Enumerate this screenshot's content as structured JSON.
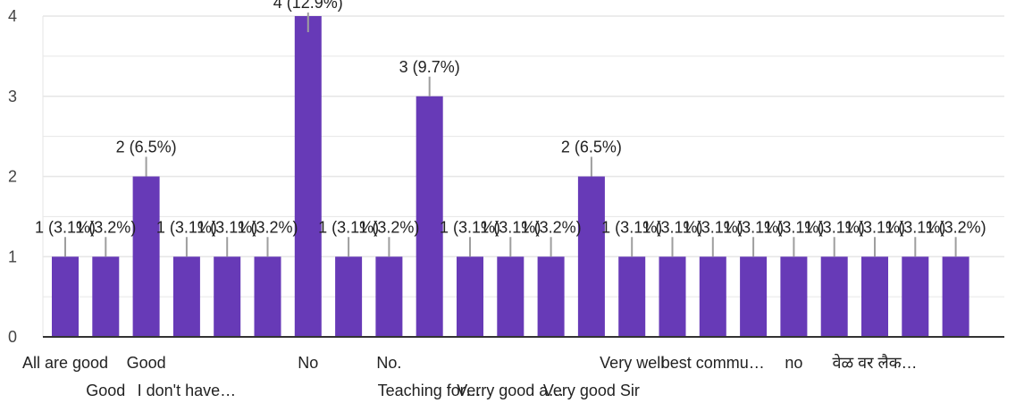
{
  "chart_data": {
    "type": "bar",
    "title": "",
    "xlabel": "",
    "ylabel": "",
    "ylim": [
      0,
      4
    ],
    "yticks": [
      0,
      1,
      2,
      3,
      4
    ],
    "grid": true,
    "bar_color": "#673ab7",
    "categories": [
      "All are good",
      "Good",
      "Good",
      "I don't have…",
      "",
      "",
      "No",
      "",
      "No.",
      "Teaching for…",
      "",
      "Verry good a…",
      "",
      "Very good Sir",
      "Very well",
      "",
      "best commu…",
      "",
      "no",
      "",
      "वेळ वर लैक…",
      "",
      ""
    ],
    "values": [
      1,
      1,
      2,
      1,
      1,
      1,
      4,
      1,
      1,
      3,
      1,
      1,
      1,
      2,
      1,
      1,
      1,
      1,
      1,
      1,
      1,
      1,
      1
    ],
    "data_labels": [
      "1 (3.1%)",
      "1 (3.2%)",
      "2 (6.5%)",
      "1 (3.1%)",
      "1 (3.1%)",
      "1 (3.2%)",
      "4 (12.9%)",
      "1 (3.1%)",
      "1 (3.2%)",
      "3 (9.7%)",
      "1 (3.1%)",
      "1 (3.1%)",
      "1 (3.2%)",
      "2 (6.5%)",
      "1 (3.1%)",
      "1 (3.1%)",
      "1 (3.1%)",
      "1 (3.1%)",
      "1 (3.1%)",
      "1 (3.1%)",
      "1 (3.1%)",
      "1 (3.1%)",
      "1 (3.2%)"
    ]
  }
}
